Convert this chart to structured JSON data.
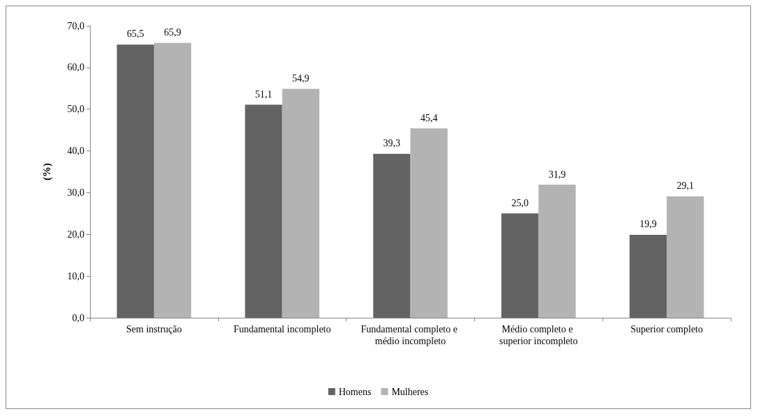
{
  "chart_data": {
    "type": "bar",
    "ylabel": "(%)",
    "categories": [
      "Sem instrução",
      "Fundamental incompleto",
      "Fundamental completo e médio incompleto",
      "Médio completo e superior incompleto",
      "Superior completo"
    ],
    "series": [
      {
        "name": "Homens",
        "color": "#636363",
        "values": [
          65.5,
          51.1,
          39.3,
          25.0,
          19.9
        ],
        "value_labels": [
          "65,5",
          "51,1",
          "39,3",
          "25,0",
          "19,9"
        ]
      },
      {
        "name": "Mulheres",
        "color": "#b3b3b3",
        "values": [
          65.9,
          54.9,
          45.4,
          31.9,
          29.1
        ],
        "value_labels": [
          "65,9",
          "54,9",
          "45,4",
          "31,9",
          "29,1"
        ]
      }
    ],
    "ylim": [
      0,
      70
    ],
    "yticks": [
      {
        "value": 0,
        "label": "0,0"
      },
      {
        "value": 10,
        "label": "10,0"
      },
      {
        "value": 20,
        "label": "20,0"
      },
      {
        "value": 30,
        "label": "30,0"
      },
      {
        "value": 40,
        "label": "40,0"
      },
      {
        "value": 50,
        "label": "50,0"
      },
      {
        "value": 60,
        "label": "60,0"
      },
      {
        "value": 70,
        "label": "70,0"
      }
    ],
    "grid": false,
    "legend": "bottom"
  }
}
